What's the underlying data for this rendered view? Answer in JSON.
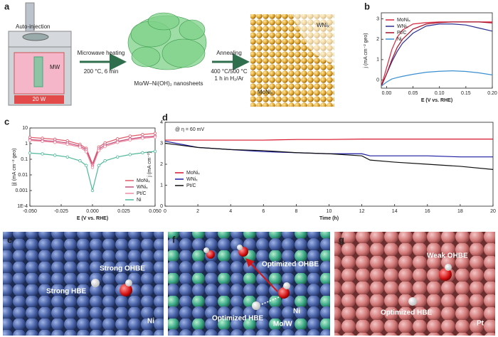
{
  "schematic": {
    "label": "a",
    "auto_injection": "Auto-injection",
    "mw": "MW",
    "power": "20 W",
    "step1": "Microwave heating",
    "cond1": "200 °C, 6 min",
    "intermediate": "Mo/W–Ni(OH)₂ nanosheets",
    "step2": "Annealing",
    "cond2a": "400 °C/500 °C",
    "cond2b": "1 h in H₂/Ar",
    "product_top": "WNiₓ",
    "product_bottom": "MoNiₓ"
  },
  "chart_data": [
    {
      "type": "line",
      "label": "b",
      "x_label": "E (V vs. RHE)",
      "y_label": "j (mA cm⁻² geo)",
      "x": [
        -0.01,
        0,
        0.01,
        0.02,
        0.03,
        0.05,
        0.075,
        0.1,
        0.125,
        0.15,
        0.175,
        0.2
      ],
      "series": [
        {
          "name": "MoNiₓ",
          "color": "#d7263d",
          "values": [
            -0.3,
            0.6,
            1.5,
            2.1,
            2.45,
            2.75,
            2.82,
            2.85,
            2.85,
            2.85,
            2.85,
            2.85
          ]
        },
        {
          "name": "WNiₓ",
          "color": "#2b2f8f",
          "values": [
            -0.3,
            0.3,
            0.9,
            1.4,
            1.8,
            2.3,
            2.65,
            2.75,
            2.75,
            2.7,
            2.55,
            2.4
          ]
        },
        {
          "name": "Pt/C",
          "color": "#a8102a",
          "values": [
            -0.3,
            0.3,
            1.0,
            1.6,
            2.0,
            2.5,
            2.75,
            2.82,
            2.85,
            2.85,
            2.85,
            2.8
          ]
        },
        {
          "name": "Ni",
          "color": "#3b8fd0",
          "values": [
            -0.3,
            -0.1,
            0.05,
            0.12,
            0.18,
            0.28,
            0.38,
            0.43,
            0.45,
            0.42,
            0.35,
            0.25
          ]
        }
      ],
      "xlim": [
        -0.01,
        0.2
      ],
      "xticks": [
        {
          "value": 0,
          "label": "0.00"
        },
        {
          "value": 0.05,
          "label": "0.05"
        },
        {
          "value": 0.1,
          "label": "0.10"
        },
        {
          "value": 0.15,
          "label": "0.15"
        },
        {
          "value": 0.2,
          "label": "0.20"
        }
      ],
      "ylim": [
        -0.4,
        3.3
      ],
      "yticks": [
        0,
        1,
        2,
        3
      ],
      "legend": "upper left"
    },
    {
      "type": "line",
      "label": "c",
      "markers": true,
      "yscale": "log",
      "x_label": "E (V vs. RHE)",
      "y_label": "|j| (mA cm⁻² geo)",
      "x": [
        -0.05,
        -0.04,
        -0.03,
        -0.02,
        -0.01,
        -0.005,
        0,
        0.005,
        0.01,
        0.02,
        0.03,
        0.04,
        0.05
      ],
      "series": [
        {
          "name": "MoNiₓ",
          "color": "#e05a6a",
          "values": [
            2.5,
            2.2,
            1.9,
            1.5,
            0.9,
            0.5,
            0.05,
            0.6,
            1.1,
            2,
            3,
            3.8,
            4.5
          ]
        },
        {
          "name": "WNiₓ",
          "color": "#c24d7a",
          "values": [
            1.8,
            1.6,
            1.4,
            1.1,
            0.7,
            0.4,
            0.04,
            0.45,
            0.8,
            1.4,
            2,
            2.6,
            3
          ]
        },
        {
          "name": "Pt/C",
          "color": "#f08aa0",
          "values": [
            1.6,
            1.4,
            1.2,
            0.9,
            0.6,
            0.3,
            0.03,
            0.35,
            0.65,
            1.2,
            1.7,
            2.2,
            2.6
          ]
        },
        {
          "name": "Ni",
          "color": "#4fb89a",
          "values": [
            0.25,
            0.22,
            0.18,
            0.14,
            0.08,
            0.04,
            0.001,
            0.04,
            0.08,
            0.14,
            0.2,
            0.26,
            0.32
          ]
        }
      ],
      "xlim": [
        -0.05,
        0.05
      ],
      "xticks": [
        {
          "value": -0.05,
          "label": "-0.050"
        },
        {
          "value": -0.025,
          "label": "-0.025"
        },
        {
          "value": 0,
          "label": "0.000"
        },
        {
          "value": 0.025,
          "label": "0.025"
        },
        {
          "value": 0.05,
          "label": "0.050"
        }
      ],
      "ylim": [
        0.0001,
        10
      ],
      "yticks": [
        {
          "value": 0.0001,
          "label": "1E-4"
        },
        0.001,
        0.01,
        0.1,
        1,
        10
      ],
      "legend": "lower right"
    },
    {
      "type": "line",
      "label": "d",
      "annotation": "@ η = 60 mV",
      "x_label": "Time (h)",
      "y_label": "j (mA cm⁻²)",
      "x": [
        0,
        2,
        4,
        6,
        8,
        10,
        12,
        12.5,
        14,
        16,
        18,
        20
      ],
      "series": [
        {
          "name": "MoNiₓ",
          "color": "#d8142a",
          "values": [
            3.15,
            3.15,
            3.15,
            3.15,
            3.18,
            3.18,
            3.2,
            3.2,
            3.2,
            3.2,
            3.2,
            3.2
          ]
        },
        {
          "name": "WNiₓ",
          "color": "#1a1aa0",
          "values": [
            3.1,
            2.8,
            2.7,
            2.6,
            2.55,
            2.5,
            2.5,
            2.4,
            2.4,
            2.4,
            2.35,
            2.35
          ]
        },
        {
          "name": "Pt/C",
          "color": "#111111",
          "values": [
            3.0,
            2.8,
            2.7,
            2.65,
            2.55,
            2.5,
            2.4,
            2.2,
            2.1,
            2.0,
            1.9,
            1.75
          ]
        }
      ],
      "xlim": [
        0,
        20
      ],
      "xticks": [
        0,
        2,
        4,
        6,
        8,
        10,
        12,
        14,
        16,
        18,
        20
      ],
      "ylim": [
        0,
        4
      ],
      "yticks": [
        0,
        1,
        2,
        3,
        4
      ],
      "legend": "center left"
    }
  ],
  "models": [
    {
      "label": "e",
      "ohbe": "Strong OHBE",
      "hbe": "Strong HBE",
      "metal": "Ni"
    },
    {
      "label": "f",
      "ohbe": "Optimized OHBE",
      "hbe": "Optimized HBE",
      "metal": "Ni",
      "dopant": "Mo/W"
    },
    {
      "label": "g",
      "ohbe": "Weak OHBE",
      "hbe": "Optimized HBE",
      "metal": "Pt"
    }
  ]
}
